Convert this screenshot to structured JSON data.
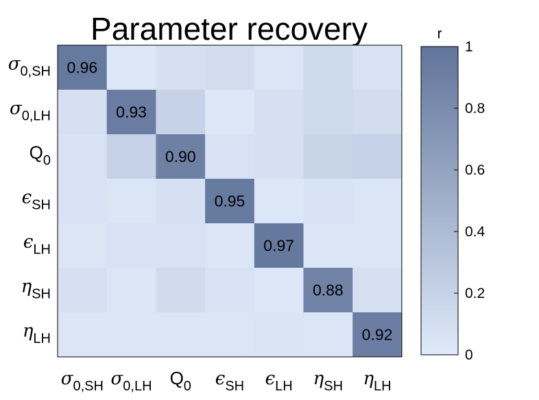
{
  "chart_data": {
    "type": "heatmap",
    "title": "Parameter recovery",
    "row_labels": [
      {
        "symbol": "σ",
        "sub": "0,SH"
      },
      {
        "symbol": "σ",
        "sub": "0,LH"
      },
      {
        "symbol": "Q",
        "sub": "0"
      },
      {
        "symbol": "ϵ",
        "sub": "SH"
      },
      {
        "symbol": "ϵ",
        "sub": "LH"
      },
      {
        "symbol": "η",
        "sub": "SH"
      },
      {
        "symbol": "η",
        "sub": "LH"
      }
    ],
    "col_labels": [
      {
        "symbol": "σ",
        "sub": "0,SH"
      },
      {
        "symbol": "σ",
        "sub": "0,LH"
      },
      {
        "symbol": "Q",
        "sub": "0"
      },
      {
        "symbol": "ϵ",
        "sub": "SH"
      },
      {
        "symbol": "ϵ",
        "sub": "LH"
      },
      {
        "symbol": "η",
        "sub": "SH"
      },
      {
        "symbol": "η",
        "sub": "LH"
      }
    ],
    "values": [
      [
        0.96,
        0.02,
        0.08,
        0.1,
        0.04,
        0.14,
        0.06
      ],
      [
        0.08,
        0.93,
        0.2,
        0.02,
        0.08,
        0.14,
        0.1
      ],
      [
        0.06,
        0.2,
        0.9,
        0.06,
        0.08,
        0.18,
        0.2
      ],
      [
        0.06,
        0.04,
        0.08,
        0.95,
        0.02,
        0.06,
        0.04
      ],
      [
        0.04,
        0.06,
        0.06,
        0.04,
        0.97,
        0.04,
        0.04
      ],
      [
        0.08,
        0.04,
        0.12,
        0.06,
        0.02,
        0.88,
        0.08
      ],
      [
        0.04,
        0.04,
        0.04,
        0.04,
        0.05,
        0.04,
        0.92
      ]
    ],
    "annotations": [
      {
        "row": 0,
        "col": 0,
        "text": "0.96"
      },
      {
        "row": 1,
        "col": 1,
        "text": "0.93"
      },
      {
        "row": 2,
        "col": 2,
        "text": "0.90"
      },
      {
        "row": 3,
        "col": 3,
        "text": "0.95"
      },
      {
        "row": 4,
        "col": 4,
        "text": "0.97"
      },
      {
        "row": 5,
        "col": 5,
        "text": "0.88"
      },
      {
        "row": 6,
        "col": 6,
        "text": "0.92"
      }
    ],
    "colorbar": {
      "label": "r",
      "range": [
        0,
        1
      ],
      "ticks": [
        "0",
        "0.2",
        "0.4",
        "0.6",
        "0.8",
        "1"
      ],
      "color_low": "#dfeafa",
      "color_high": "#61749a"
    }
  }
}
